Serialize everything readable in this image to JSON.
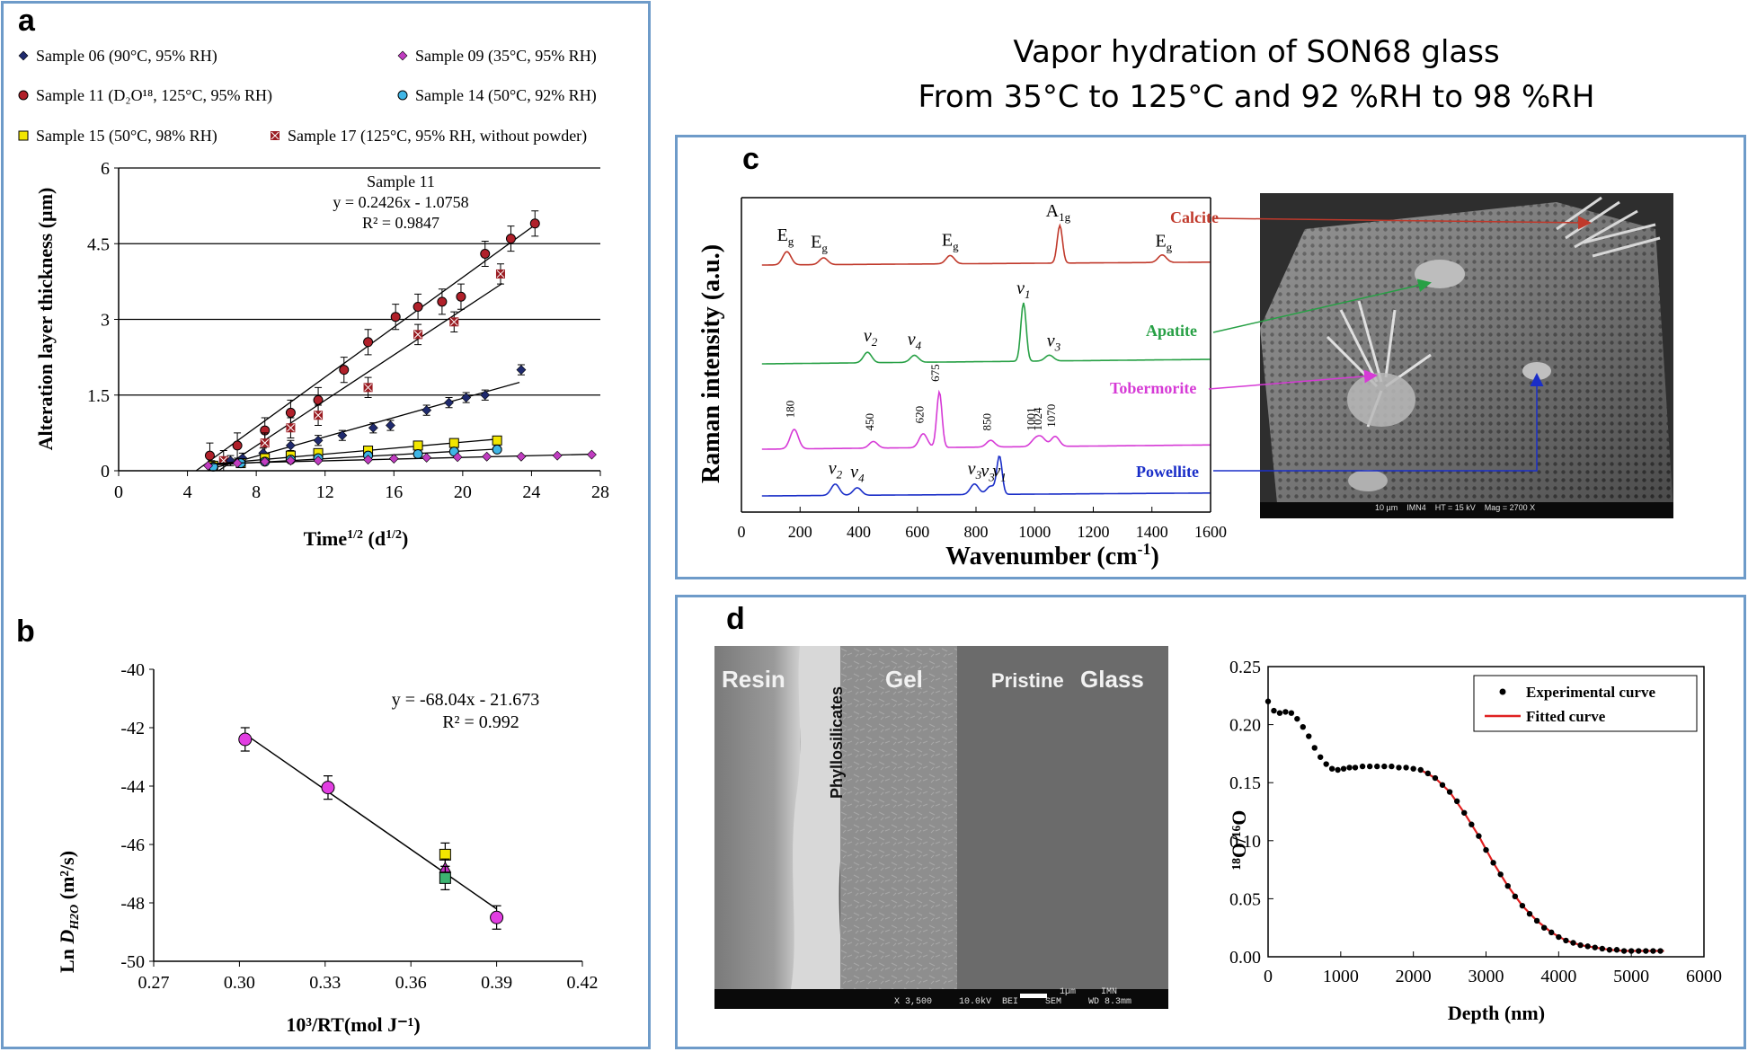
{
  "page": {
    "title_line1": "Vapor hydration of SON68 glass",
    "title_line2": "From 35°C to 125°C and 92 %RH to 98 %RH"
  },
  "panels": {
    "a": "a",
    "b": "b",
    "c": "c",
    "d": "d"
  },
  "colors": {
    "border": "#6e9bc9",
    "s06": "#1f2a6e",
    "s09": "#c03cc0",
    "s11": "#b0202a",
    "s14": "#3fb6e6",
    "s15": "#f2e600",
    "s17": "#9a1c22",
    "calcite": "#c0392b",
    "apatite": "#27a045",
    "tobermorite": "#d63ad6",
    "powellite": "#1a2ec8",
    "fit": "#e02020"
  },
  "chart_data": [
    {
      "id": "a",
      "type": "scatter",
      "xlabel": "Time",
      "xlabel_sup": "1/2",
      "xlabel_unit": " (d",
      "xlabel_unit_sup": "1/2",
      "xlabel_end": ")",
      "ylabel": "Alteration layer thickness (µm)",
      "xlim": [
        0,
        28
      ],
      "ylim": [
        0,
        6
      ],
      "xticks": [
        "0",
        "4",
        "8",
        "12",
        "16",
        "20",
        "24",
        "28"
      ],
      "yticks": [
        "0",
        "1.5",
        "3",
        "4.5",
        "6"
      ],
      "legend": [
        {
          "label": "Sample 06 (90°C, 95% RH)",
          "marker": "diamond",
          "color": "#1f2a6e"
        },
        {
          "label": "Sample 09 (35°C, 95% RH)",
          "marker": "diamond",
          "color": "#c03cc0"
        },
        {
          "label": "Sample 11 (D₂O¹⁸, 125°C, 95% RH)",
          "marker": "circle",
          "color": "#b0202a"
        },
        {
          "label": "Sample 14 (50°C, 92% RH)",
          "marker": "circle",
          "color": "#3fb6e6"
        },
        {
          "label": "Sample 15 (50°C, 98% RH)",
          "marker": "square",
          "color": "#f2e600"
        },
        {
          "label": "Sample 17 (125°C, 95% RH, without powder)",
          "marker": "cross",
          "color": "#9a1c22"
        }
      ],
      "annotation": [
        "Sample 11",
        "y = 0.2426x - 1.0758",
        "R² = 0.9847"
      ],
      "series": [
        {
          "name": "Sample 11",
          "marker": "circle",
          "color": "#b0202a",
          "x": [
            5.3,
            6.9,
            8.5,
            10,
            11.6,
            13.1,
            14.5,
            16.1,
            17.4,
            18.8,
            19.9,
            21.3,
            22.8,
            24.2
          ],
          "y": [
            0.3,
            0.5,
            0.8,
            1.15,
            1.4,
            2.0,
            2.55,
            3.05,
            3.25,
            3.35,
            3.45,
            4.3,
            4.6,
            4.9
          ],
          "err": 0.25,
          "fit": [
            4.5,
            24.2
          ]
        },
        {
          "name": "Sample 17",
          "marker": "cross",
          "color": "#9a1c22",
          "x": [
            6.1,
            8.5,
            10,
            11.6,
            14.5,
            17.4,
            19.5,
            22.2
          ],
          "y": [
            0.2,
            0.55,
            0.85,
            1.1,
            1.65,
            2.7,
            2.95,
            3.9
          ],
          "err": 0.2,
          "fit": [
            5.8,
            22.3
          ]
        },
        {
          "name": "Sample 06",
          "marker": "diamond",
          "color": "#1f2a6e",
          "x": [
            5.4,
            6.5,
            7.2,
            8.4,
            10,
            11.6,
            13,
            14.8,
            15.8,
            17.9,
            19.2,
            20.2,
            21.3,
            23.4
          ],
          "y": [
            0.1,
            0.2,
            0.25,
            0.35,
            0.5,
            0.6,
            0.7,
            0.85,
            0.9,
            1.2,
            1.35,
            1.45,
            1.5,
            2.0
          ],
          "err": 0.1,
          "fit": [
            5.5,
            23.3
          ]
        },
        {
          "name": "Sample 15",
          "marker": "square",
          "color": "#f2e600",
          "x": [
            5.5,
            7.1,
            8.5,
            10,
            11.6,
            14.5,
            17.4,
            19.5,
            22
          ],
          "y": [
            0.1,
            0.15,
            0.25,
            0.3,
            0.35,
            0.4,
            0.5,
            0.55,
            0.6
          ],
          "err": 0,
          "fit": [
            5.5,
            22
          ]
        },
        {
          "name": "Sample 14",
          "marker": "circle",
          "color": "#3fb6e6",
          "x": [
            5.5,
            7.1,
            8.5,
            10,
            11.6,
            14.5,
            17.4,
            19.5,
            22
          ],
          "y": [
            0.08,
            0.15,
            0.18,
            0.22,
            0.25,
            0.3,
            0.33,
            0.38,
            0.42
          ],
          "err": 0,
          "fit": [
            5.5,
            22
          ]
        },
        {
          "name": "Sample 09",
          "marker": "diamond",
          "color": "#c03cc0",
          "x": [
            5.2,
            6.9,
            8.5,
            10,
            11.6,
            14.5,
            16,
            17.9,
            19.7,
            21.4,
            23.4,
            25.5,
            27.5
          ],
          "y": [
            0.1,
            0.15,
            0.18,
            0.2,
            0.2,
            0.22,
            0.24,
            0.26,
            0.27,
            0.28,
            0.28,
            0.3,
            0.32
          ],
          "err": 0,
          "fit": [
            5.2,
            27.6
          ]
        }
      ]
    },
    {
      "id": "b",
      "type": "scatter",
      "xlabel": "10³/RT(mol J⁻¹)",
      "ylabel_pre": "Ln ",
      "ylabel_var": "D",
      "ylabel_sub": "H2O",
      "ylabel_unit": " (m²/s)",
      "xlim": [
        0.27,
        0.42
      ],
      "ylim": [
        -50,
        -40
      ],
      "xticks": [
        "0.27",
        "0.30",
        "0.33",
        "0.36",
        "0.39",
        "0.42"
      ],
      "yticks": [
        "-50",
        "-48",
        "-46",
        "-44",
        "-42",
        "-40"
      ],
      "annotation": [
        "y = -68.04x - 21.673",
        "R² = 0.992"
      ],
      "fit": {
        "slope": -68.04,
        "intercept": -21.673,
        "xrange": [
          0.302,
          0.39
        ]
      },
      "points": [
        {
          "x": 0.302,
          "y": -42.4,
          "err": 0.4,
          "marker": "circle",
          "color": "#e23ee2"
        },
        {
          "x": 0.331,
          "y": -44.05,
          "err": 0.4,
          "marker": "circle",
          "color": "#e23ee2"
        },
        {
          "x": 0.372,
          "y": -46.35,
          "err": 0.4,
          "marker": "square",
          "color": "#f2e600"
        },
        {
          "x": 0.372,
          "y": -46.8,
          "err": 0.3,
          "marker": "triangle",
          "color": "#c030c0"
        },
        {
          "x": 0.372,
          "y": -47.15,
          "err": 0.4,
          "marker": "square",
          "color": "#3cb371"
        },
        {
          "x": 0.39,
          "y": -48.5,
          "err": 0.4,
          "marker": "circle",
          "color": "#e23ee2"
        }
      ]
    },
    {
      "id": "c",
      "type": "line",
      "xlabel": "Wavenumber (cm",
      "xlabel_sup": "-1",
      "xlabel_end": ")",
      "ylabel": "Raman intensity (a.u.)",
      "xlim": [
        0,
        1600
      ],
      "xticks": [
        "0",
        "200",
        "400",
        "600",
        "800",
        "1000",
        "1200",
        "1400",
        "1600"
      ],
      "series": [
        {
          "name": "Calcite",
          "color": "#c0392b",
          "peaks": [
            [
              155,
              0.35
            ],
            [
              280,
              0.18
            ],
            [
              712,
              0.22
            ],
            [
              1086,
              1.0
            ],
            [
              1435,
              0.2
            ]
          ],
          "labels": [
            {
              "x": 150,
              "t": "E",
              "s": "g"
            },
            {
              "x": 265,
              "t": "E",
              "s": "g"
            },
            {
              "x": 712,
              "t": "E",
              "s": "g"
            },
            {
              "x": 1080,
              "t": "A",
              "s": "1g"
            },
            {
              "x": 1440,
              "t": "E",
              "s": "g"
            }
          ]
        },
        {
          "name": "Apatite",
          "color": "#27a045",
          "peaks": [
            [
              430,
              0.18
            ],
            [
              590,
              0.12
            ],
            [
              962,
              1.0
            ],
            [
              1050,
              0.1
            ]
          ],
          "labels": [
            {
              "x": 440,
              "t": "v",
              "s": "2"
            },
            {
              "x": 590,
              "t": "v",
              "s": "4"
            },
            {
              "x": 962,
              "t": "v",
              "s": "1"
            },
            {
              "x": 1065,
              "t": "v",
              "s": "3"
            }
          ]
        },
        {
          "name": "Tobermorite",
          "color": "#d63ad6",
          "peaks": [
            [
              180,
              0.35
            ],
            [
              450,
              0.12
            ],
            [
              620,
              0.25
            ],
            [
              675,
              1.0
            ],
            [
              850,
              0.12
            ],
            [
              1001,
              0.12
            ],
            [
              1024,
              0.15
            ],
            [
              1070,
              0.18
            ]
          ],
          "labels": [
            {
              "x": 180,
              "t": "180"
            },
            {
              "x": 450,
              "t": "450"
            },
            {
              "x": 620,
              "t": "620"
            },
            {
              "x": 675,
              "t": "675"
            },
            {
              "x": 850,
              "t": "850"
            },
            {
              "x": 1001,
              "t": "1001"
            },
            {
              "x": 1024,
              "t": "1024"
            },
            {
              "x": 1070,
              "t": "1070"
            }
          ]
        },
        {
          "name": "Powellite",
          "color": "#1a2ec8",
          "peaks": [
            [
              320,
              0.3
            ],
            [
              395,
              0.2
            ],
            [
              795,
              0.28
            ],
            [
              850,
              0.22
            ],
            [
              880,
              1.0
            ]
          ],
          "labels": [
            {
              "x": 320,
              "t": "v",
              "s": "2"
            },
            {
              "x": 395,
              "t": "v",
              "s": "4"
            },
            {
              "x": 795,
              "t": "v",
              "s": "3"
            },
            {
              "x": 840,
              "t": "v",
              "s": "3"
            },
            {
              "x": 880,
              "t": "v",
              "s": "1"
            }
          ]
        }
      ]
    },
    {
      "id": "d",
      "type": "line",
      "xlabel": "Depth (nm)",
      "ylabel": "¹⁸O/¹⁶O",
      "xlim": [
        0,
        6000
      ],
      "ylim": [
        0,
        0.25
      ],
      "xticks": [
        "0",
        "1000",
        "2000",
        "3000",
        "4000",
        "5000",
        "6000"
      ],
      "yticks": [
        "0.00",
        "0.05",
        "0.10",
        "0.15",
        "0.20",
        "0.25"
      ],
      "legend": [
        "Experimental curve",
        "Fitted curve"
      ],
      "experimental": {
        "x": [
          0,
          80,
          160,
          240,
          320,
          400,
          480,
          560,
          640,
          720,
          800,
          880,
          960,
          1040,
          1120,
          1200,
          1300,
          1400,
          1500,
          1600,
          1700,
          1800,
          1900,
          2000,
          2100,
          2200,
          2300,
          2400,
          2500,
          2600,
          2700,
          2800,
          2900,
          3000,
          3100,
          3200,
          3300,
          3400,
          3500,
          3600,
          3700,
          3800,
          3900,
          4000,
          4100,
          4200,
          4300,
          4400,
          4500,
          4600,
          4700,
          4800,
          4900,
          5000,
          5100,
          5200,
          5300,
          5400
        ],
        "y": [
          0.22,
          0.212,
          0.21,
          0.211,
          0.21,
          0.205,
          0.198,
          0.19,
          0.18,
          0.172,
          0.166,
          0.162,
          0.161,
          0.162,
          0.163,
          0.163,
          0.164,
          0.164,
          0.164,
          0.164,
          0.164,
          0.163,
          0.163,
          0.162,
          0.161,
          0.158,
          0.154,
          0.148,
          0.142,
          0.134,
          0.124,
          0.114,
          0.104,
          0.092,
          0.081,
          0.071,
          0.061,
          0.052,
          0.044,
          0.037,
          0.031,
          0.025,
          0.021,
          0.017,
          0.014,
          0.012,
          0.01,
          0.009,
          0.008,
          0.007,
          0.006,
          0.006,
          0.005,
          0.005,
          0.005,
          0.005,
          0.005,
          0.005
        ]
      },
      "fitted": {
        "x": [
          2100,
          2300,
          2500,
          2700,
          2900,
          3100,
          3300,
          3500,
          3700,
          3900,
          4100,
          4300,
          4500,
          4700,
          4900,
          5100,
          5300,
          5450
        ],
        "y": [
          0.161,
          0.154,
          0.142,
          0.124,
          0.104,
          0.081,
          0.061,
          0.044,
          0.031,
          0.021,
          0.014,
          0.01,
          0.008,
          0.006,
          0.005,
          0.005,
          0.005,
          0.005
        ]
      }
    }
  ],
  "sem_c": {
    "labels": [
      "Calcite",
      "Apatite",
      "Tobermorite",
      "Powellite"
    ],
    "scalebar": "10 µm    IMN4    HT = 15 kV    Mag = 2700 X"
  },
  "sem_d": {
    "labels": [
      "Resin",
      "Phyllosilicates",
      "Gel",
      "Pristine",
      "Glass"
    ],
    "scalebar_text": "1µm",
    "footer": "X 3,500     10.0kV  BEI     SEM     WD 8.3mm",
    "footer_right": "IMN"
  }
}
